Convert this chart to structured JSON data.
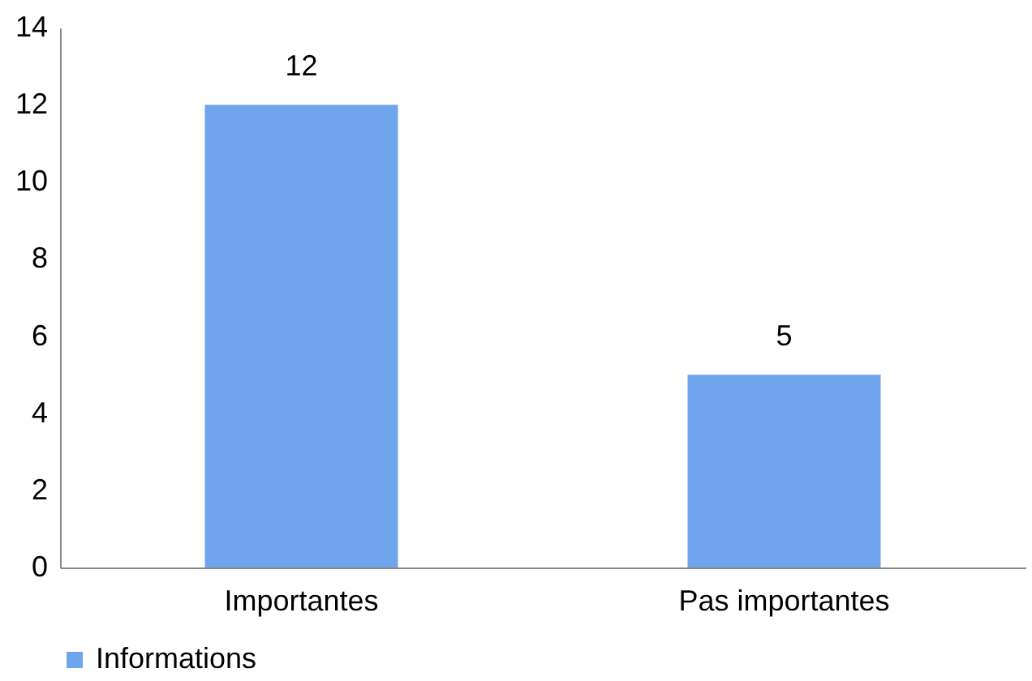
{
  "chart_data": {
    "type": "bar",
    "categories": [
      "Importantes",
      "Pas importantes"
    ],
    "series": [
      {
        "name": "Informations",
        "color": "#6fa5ec",
        "values": [
          12,
          5
        ]
      }
    ],
    "ylim": [
      0,
      14
    ],
    "yticks": [
      0,
      2,
      4,
      6,
      8,
      10,
      12,
      14
    ],
    "grid": false,
    "legend": "bottom",
    "data_labels": true
  }
}
